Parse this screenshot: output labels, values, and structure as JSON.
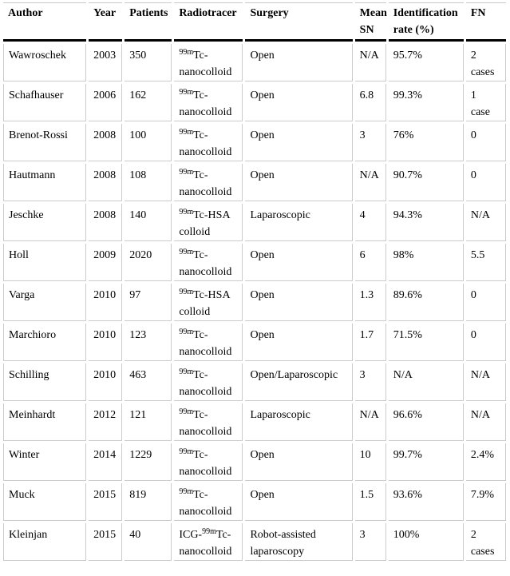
{
  "table": {
    "columns": [
      {
        "key": "author",
        "label": "Author",
        "width": 104
      },
      {
        "key": "year",
        "label": "Year",
        "width": 42
      },
      {
        "key": "patients",
        "label": "Patients",
        "width": 59
      },
      {
        "key": "radiotracer",
        "label": "Radiotracer",
        "width": 86
      },
      {
        "key": "surgery",
        "label": "Surgery",
        "width": 134
      },
      {
        "key": "mean_sn",
        "label": "Mean SN",
        "width": 39
      },
      {
        "key": "id_rate",
        "label": "Identification rate (%)",
        "width": 94
      },
      {
        "key": "fn",
        "label": "FN",
        "width": 50
      }
    ],
    "rows": [
      {
        "author": "Wawroschek",
        "year": "2003",
        "patients": "350",
        "radiotracer": [
          {
            "sup": "99m"
          },
          {
            "text": "Tc-nanocolloid"
          }
        ],
        "surgery": "Open",
        "mean_sn": "N/A",
        "id_rate": "95.7%",
        "fn": "2\ncases"
      },
      {
        "author": "Schafhauser",
        "year": "2006",
        "patients": "162",
        "radiotracer": [
          {
            "sup": "99m"
          },
          {
            "text": "Tc-nanocolloid"
          }
        ],
        "surgery": "Open",
        "mean_sn": "6.8",
        "id_rate": "99.3%",
        "fn": "1\ncase"
      },
      {
        "author": "Brenot-Rossi",
        "year": "2008",
        "patients": "100",
        "radiotracer": [
          {
            "sup": "99m"
          },
          {
            "text": "Tc-nanocolloid"
          }
        ],
        "surgery": "Open",
        "mean_sn": "3",
        "id_rate": "76%",
        "fn": "0"
      },
      {
        "author": "Hautmann",
        "year": "2008",
        "patients": "108",
        "radiotracer": [
          {
            "sup": "99m"
          },
          {
            "text": "Tc-nanocolloid"
          }
        ],
        "surgery": "Open",
        "mean_sn": "N/A",
        "id_rate": "90.7%",
        "fn": "0"
      },
      {
        "author": "Jeschke",
        "year": "2008",
        "patients": "140",
        "radiotracer": [
          {
            "sup": "99m"
          },
          {
            "text": "Tc-HSA colloid"
          }
        ],
        "surgery": "Laparoscopic",
        "mean_sn": "4",
        "id_rate": "94.3%",
        "fn": "N/A"
      },
      {
        "author": "Holl",
        "year": "2009",
        "patients": "2020",
        "radiotracer": [
          {
            "sup": "99m"
          },
          {
            "text": "Tc-nanocolloid"
          }
        ],
        "surgery": "Open",
        "mean_sn": "6",
        "id_rate": "98%",
        "fn": "5.5"
      },
      {
        "author": "Varga",
        "year": "2010",
        "patients": "97",
        "radiotracer": [
          {
            "sup": "99m"
          },
          {
            "text": "Tc-HSA colloid"
          }
        ],
        "surgery": "Open",
        "mean_sn": "1.3",
        "id_rate": "89.6%",
        "fn": "0"
      },
      {
        "author": "Marchioro",
        "year": "2010",
        "patients": "123",
        "radiotracer": [
          {
            "sup": "99m"
          },
          {
            "text": "Tc-nanocolloid"
          }
        ],
        "surgery": "Open",
        "mean_sn": "1.7",
        "id_rate": "71.5%",
        "fn": "0"
      },
      {
        "author": "Schilling",
        "year": "2010",
        "patients": "463",
        "radiotracer": [
          {
            "sup": "99m"
          },
          {
            "text": "Tc-nanocolloid"
          }
        ],
        "surgery": "Open/Laparoscopic",
        "mean_sn": "3",
        "id_rate": "N/A",
        "fn": "N/A"
      },
      {
        "author": "Meinhardt",
        "year": "2012",
        "patients": "121",
        "radiotracer": [
          {
            "sup": "99m"
          },
          {
            "text": "Tc-nanocolloid"
          }
        ],
        "surgery": "Laparoscopic",
        "mean_sn": "N/A",
        "id_rate": "96.6%",
        "fn": "N/A"
      },
      {
        "author": "Winter",
        "year": "2014",
        "patients": "1229",
        "radiotracer": [
          {
            "sup": "99m"
          },
          {
            "text": "Tc-nanocolloid"
          }
        ],
        "surgery": "Open",
        "mean_sn": "10",
        "id_rate": "99.7%",
        "fn": "2.4%"
      },
      {
        "author": "Muck",
        "year": "2015",
        "patients": "819",
        "radiotracer": [
          {
            "sup": "99m"
          },
          {
            "text": "Tc-nanocolloid"
          }
        ],
        "surgery": "Open",
        "mean_sn": "1.5",
        "id_rate": "93.6%",
        "fn": "7.9%"
      },
      {
        "author": "Kleinjan",
        "year": "2015",
        "patients": "40",
        "radiotracer": [
          {
            "text": "ICG-"
          },
          {
            "sup": "99m"
          },
          {
            "text": "Tc-nanocolloid"
          }
        ],
        "surgery": "Robot-assisted laparoscopy",
        "mean_sn": "3",
        "id_rate": "100%",
        "fn": "2\ncases"
      }
    ]
  },
  "colors": {
    "header_rule": "#000000",
    "grid_line": "#cbcbcb",
    "text": "#000000",
    "background": "#ffffff"
  }
}
